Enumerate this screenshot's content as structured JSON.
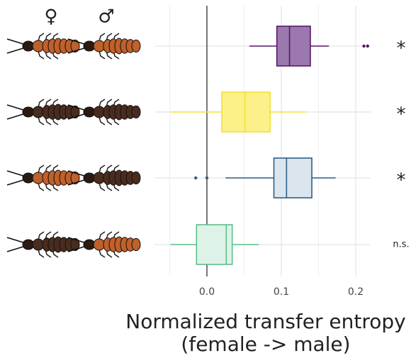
{
  "chart_data": {
    "type": "boxplot",
    "symbols": [
      "♀",
      "♂"
    ],
    "symbol_colors": [
      "#e8202a",
      "#2330c8"
    ],
    "xlabel": [
      "Normalized transfer entropy",
      "(female -> male)"
    ],
    "xlim": [
      -0.07,
      0.22
    ],
    "xticks": [
      {
        "value": 0,
        "label": "0.0"
      },
      0.1,
      0.2
    ],
    "xminor": [
      -0.05,
      0.05,
      0.15
    ],
    "reference_line": 0,
    "grid": true,
    "boxes": [
      {
        "color": "#561868",
        "fill": "#9b78ae",
        "whislo": 0.057,
        "q1": 0.094,
        "med": 0.111,
        "q3": 0.139,
        "whishi": 0.164,
        "fliers": [
          0.211,
          0.216
        ]
      },
      {
        "color": "#f3e236",
        "fill": "#fbf08a",
        "whislo": -0.049,
        "q1": 0.02,
        "med": 0.051,
        "q3": 0.085,
        "whishi": 0.133,
        "fliers": []
      },
      {
        "color": "#2d5e86",
        "fill": "#dbe5ed",
        "whislo": 0.025,
        "q1": 0.09,
        "med": 0.107,
        "q3": 0.141,
        "whishi": 0.173,
        "fliers": [
          -0.015,
          0.0
        ]
      },
      {
        "color": "#5cc08b",
        "fill": "#dff2e7",
        "whislo": -0.049,
        "q1": -0.014,
        "med": 0.026,
        "q3": 0.034,
        "whishi": 0.07,
        "fliers": []
      }
    ],
    "annotations": [
      "*",
      "*",
      "*",
      "n.s."
    ]
  }
}
